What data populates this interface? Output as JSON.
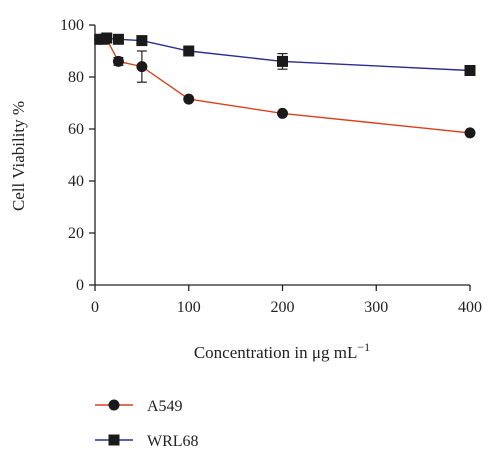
{
  "chart_data": {
    "type": "line",
    "xlabel_main": "Concentration in μg mL",
    "xlabel_sup": "−1",
    "ylabel": "Cell Viability %",
    "xlim": [
      0,
      400
    ],
    "ylim": [
      0,
      100
    ],
    "xticks": [
      0,
      100,
      200,
      300,
      400
    ],
    "yticks": [
      0,
      20,
      40,
      60,
      80,
      100
    ],
    "grid": false,
    "legend_position": "bottom-left",
    "series": [
      {
        "name": "A549",
        "marker": "circle",
        "color": "#d9411e",
        "x": [
          5,
          12.5,
          25,
          50,
          100,
          200,
          400
        ],
        "y": [
          94.5,
          94.5,
          86,
          84,
          71.5,
          66,
          58.5
        ],
        "err": [
          0,
          0,
          1.5,
          6,
          0.5,
          0.5,
          0.5
        ]
      },
      {
        "name": "WRL68",
        "marker": "square",
        "color": "#2b2e8c",
        "x": [
          5,
          12.5,
          25,
          50,
          100,
          200,
          400
        ],
        "y": [
          94.5,
          95,
          94.5,
          94,
          90,
          86,
          82.5
        ],
        "err": [
          0,
          0,
          0.5,
          0.5,
          0.5,
          3,
          0.5
        ]
      }
    ]
  }
}
